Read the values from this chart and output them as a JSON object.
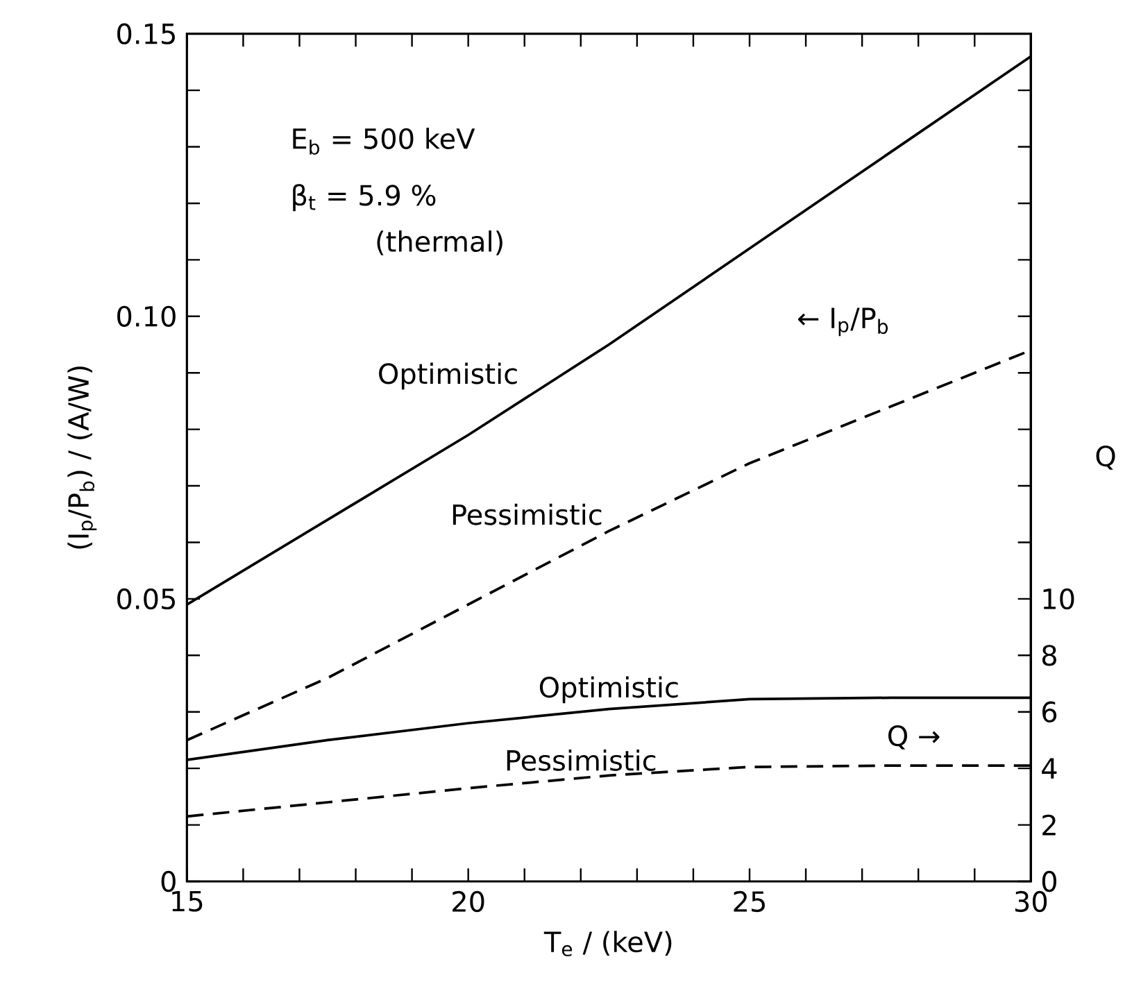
{
  "chart_data": {
    "type": "line",
    "xlabel": "T$_{e}$ / (keV)",
    "ylabel": "(I$_{p}$/P$_{b}$) / (A/W)",
    "y2label": "Q",
    "x": [
      15,
      17.5,
      20,
      22.5,
      25,
      27.5,
      30
    ],
    "xlim": [
      15,
      30
    ],
    "xticks": [
      15,
      {
        "value": 16,
        "label": null
      },
      {
        "value": 17,
        "label": null
      },
      {
        "value": 18,
        "label": null
      },
      {
        "value": 19,
        "label": null
      },
      20,
      {
        "value": 21,
        "label": null
      },
      {
        "value": 22,
        "label": null
      },
      {
        "value": 23,
        "label": null
      },
      {
        "value": 24,
        "label": null
      },
      25,
      {
        "value": 26,
        "label": null
      },
      {
        "value": 27,
        "label": null
      },
      {
        "value": 28,
        "label": null
      },
      {
        "value": 29,
        "label": null
      },
      30
    ],
    "ylim": [
      0,
      0.15
    ],
    "yticks": [
      0,
      {
        "value": 0.01,
        "label": null
      },
      {
        "value": 0.02,
        "label": null
      },
      {
        "value": 0.03,
        "label": null
      },
      {
        "value": 0.04,
        "label": null
      },
      0.05,
      {
        "value": 0.06,
        "label": null
      },
      {
        "value": 0.07,
        "label": null
      },
      {
        "value": 0.08,
        "label": null
      },
      {
        "value": 0.09,
        "label": null
      },
      {
        "value": 0.1,
        "label": "0.10"
      },
      {
        "value": 0.11,
        "label": null
      },
      {
        "value": 0.12,
        "label": null
      },
      {
        "value": 0.13,
        "label": null
      },
      {
        "value": 0.14,
        "label": null
      },
      0.15
    ],
    "y2lim": [
      0,
      30
    ],
    "y2ticks": [
      0,
      2,
      4,
      6,
      8,
      10,
      {
        "value": 12,
        "label": null
      },
      {
        "value": 14,
        "label": null
      },
      {
        "value": 16,
        "label": null
      },
      {
        "value": 18,
        "label": null
      },
      {
        "value": 20,
        "label": null
      },
      {
        "value": 22,
        "label": null
      },
      {
        "value": 24,
        "label": null
      },
      {
        "value": 26,
        "label": null
      },
      {
        "value": 28,
        "label": null
      },
      {
        "value": 30,
        "label": null
      }
    ],
    "series": [
      {
        "color": "#000000",
        "line_style": "solid",
        "values": [
          0.049,
          0.064,
          0.079,
          0.095,
          0.112,
          0.129,
          0.146
        ]
      },
      {
        "color": "#000000",
        "line_style": "dashed",
        "values": [
          0.025,
          0.036,
          0.049,
          0.062,
          0.074,
          0.084,
          0.094
        ]
      },
      {
        "color": "#000000",
        "line_style": "solid",
        "axis": "y2",
        "values": [
          4.3,
          5.0,
          5.6,
          6.1,
          6.45,
          6.5,
          6.5
        ]
      },
      {
        "color": "#000000",
        "line_style": "dashed",
        "axis": "y2",
        "values": [
          2.3,
          2.8,
          3.3,
          3.75,
          4.05,
          4.1,
          4.1
        ]
      }
    ],
    "annotations": [
      {
        "text": "Optimistic",
        "x": 21,
        "y": 0.086
      },
      {
        "text": "Pessimistic",
        "x": 22.5,
        "y": 0.062
      },
      {
        "text": "Optimistic",
        "x": 22.5,
        "y": 0.0305
      },
      {
        "text": "Pessimistic",
        "x": 22,
        "y": 0.0185
      },
      "E$_{b}$ = 500 keV",
      "β$_{t}$ = 5.9 %",
      "(thermal)",
      "← I$_{p}$/P$_{b}$",
      "Q →"
    ]
  }
}
